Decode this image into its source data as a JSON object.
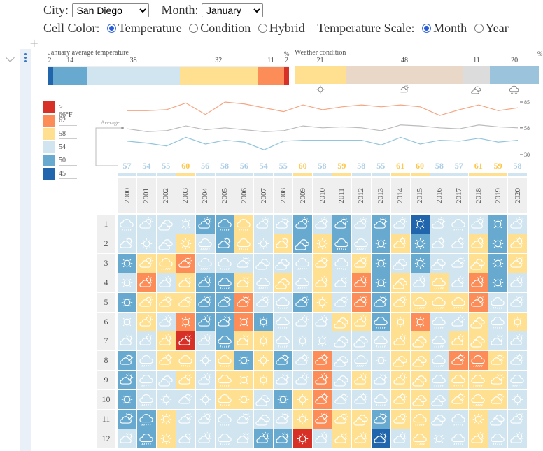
{
  "controls": {
    "city_label": "City:",
    "city_value": "San Diego",
    "month_label": "Month:",
    "month_value": "January",
    "cell_color_label": "Cell Color:",
    "cell_color_options": [
      {
        "label": "Temperature",
        "checked": true
      },
      {
        "label": "Condition",
        "checked": false
      },
      {
        "label": "Hybrid",
        "checked": false
      }
    ],
    "temp_scale_label": "Temperature Scale:",
    "temp_scale_options": [
      {
        "label": "Month",
        "checked": true
      },
      {
        "label": "Year",
        "checked": false
      }
    ]
  },
  "gutter": {
    "add": "+"
  },
  "temperature_summary": {
    "title": "January average temperature",
    "unit": "%",
    "segments": [
      {
        "bin": "45",
        "percent": 2,
        "color": "#2166ac"
      },
      {
        "bin": "50",
        "percent": 14,
        "color": "#67a9cf"
      },
      {
        "bin": "54",
        "percent": 38,
        "color": "#d1e5f0"
      },
      {
        "bin": "58",
        "percent": 32,
        "color": "#fee090"
      },
      {
        "bin": "62",
        "percent": 11,
        "color": "#fc8d59"
      },
      {
        "bin": "66",
        "percent": 2,
        "color": "#d73027"
      }
    ]
  },
  "weather_summary": {
    "title": "Weather condition",
    "unit": "%",
    "segments": [
      {
        "condition": "sun",
        "percent": 21,
        "color": "#fee090"
      },
      {
        "condition": "partly",
        "percent": 48,
        "color": "#e9d8c8"
      },
      {
        "condition": "cloudy",
        "percent": 11,
        "color": "#dcdcdc"
      },
      {
        "condition": "rain",
        "percent": 20,
        "color": "#9cc3dc"
      }
    ]
  },
  "legend": [
    {
      "label": "> 66°F",
      "color": "#d73027"
    },
    {
      "label": "62",
      "color": "#fc8d59"
    },
    {
      "label": "58",
      "color": "#fee090"
    },
    {
      "label": "54",
      "color": "#d1e5f0"
    },
    {
      "label": "50",
      "color": "#67a9cf"
    },
    {
      "label": "45",
      "color": "#2166ac"
    }
  ],
  "bin_colors": {
    "45": "#2166ac",
    "50": "#67a9cf",
    "54": "#d1e5f0",
    "58": "#fee090",
    "62": "#fc8d59",
    "66": "#d73027"
  },
  "chart_data": {
    "type": "line",
    "x": [
      2000,
      2001,
      2002,
      2003,
      2004,
      2005,
      2006,
      2007,
      2008,
      2009,
      2010,
      2011,
      2012,
      2013,
      2014,
      2015,
      2016,
      2017,
      2018,
      2019,
      2020
    ],
    "annotation": "Average",
    "yticks": [
      85,
      58,
      30
    ],
    "ylim": [
      30,
      85
    ],
    "series": [
      {
        "key": "max",
        "color": "#f4a582",
        "values": [
          76,
          76,
          77,
          84,
          72,
          85,
          83,
          79,
          75,
          82,
          77,
          80,
          82,
          80,
          82,
          80,
          71,
          77,
          82,
          76,
          79
        ]
      },
      {
        "key": "avg",
        "color": "#bbbbbb",
        "values": [
          57,
          54,
          55,
          60,
          56,
          58,
          56,
          54,
          55,
          60,
          58,
          59,
          58,
          55,
          61,
          60,
          58,
          57,
          61,
          59,
          58
        ]
      },
      {
        "key": "min",
        "color": "#92c5de",
        "values": [
          44,
          42,
          39,
          48,
          41,
          45,
          43,
          35,
          44,
          45,
          45,
          45,
          45,
          40,
          48,
          41,
          45,
          44,
          47,
          43,
          45
        ]
      }
    ]
  },
  "year_averages": [
    57,
    54,
    55,
    60,
    56,
    58,
    56,
    54,
    55,
    60,
    58,
    59,
    58,
    55,
    61,
    60,
    58,
    57,
    61,
    59,
    58
  ],
  "year_average_colors": {
    "high": "#fdc74a",
    "normal": "#a9cde6"
  },
  "years": [
    "2000",
    "2001",
    "2002",
    "2003",
    "2004",
    "2005",
    "2006",
    "2007",
    "2008",
    "2009",
    "2010",
    "2011",
    "2012",
    "2013",
    "2014",
    "2015",
    "2016",
    "2017",
    "2018",
    "2019",
    "2020"
  ],
  "grid": [
    {
      "day": "1",
      "temps": [
        54,
        54,
        54,
        54,
        50,
        50,
        58,
        54,
        54,
        50,
        54,
        50,
        54,
        50,
        54,
        45,
        54,
        54,
        54,
        50,
        54
      ],
      "conditions": [
        "rain",
        "partly",
        "cloudy",
        "sun",
        "partly",
        "rain",
        "rain",
        "partly",
        "partly",
        "partly",
        "partly",
        "partly",
        "partly",
        "partly",
        "partly",
        "sun",
        "partly",
        "rain",
        "partly",
        "sun",
        "partly"
      ]
    },
    {
      "day": "2",
      "temps": [
        54,
        54,
        54,
        58,
        54,
        50,
        58,
        54,
        58,
        50,
        58,
        50,
        54,
        50,
        58,
        50,
        54,
        54,
        58,
        50,
        58
      ],
      "conditions": [
        "partly",
        "sun",
        "cloudy",
        "sun",
        "rain",
        "partly",
        "rain",
        "sun",
        "partly",
        "cloudy",
        "sun",
        "rain",
        "rain",
        "sun",
        "partly",
        "sun",
        "partly",
        "partly",
        "partly",
        "sun",
        "partly"
      ]
    },
    {
      "day": "3",
      "temps": [
        50,
        58,
        58,
        62,
        54,
        54,
        54,
        54,
        54,
        54,
        58,
        54,
        58,
        50,
        54,
        50,
        54,
        54,
        58,
        50,
        58
      ],
      "conditions": [
        "sun",
        "partly",
        "rain",
        "partly",
        "rain",
        "rain",
        "partly",
        "cloudy",
        "cloudy",
        "rain",
        "partly",
        "rain",
        "partly",
        "sun",
        "cloudy",
        "sun",
        "cloudy",
        "partly",
        "cloudy",
        "sun",
        "partly"
      ]
    },
    {
      "day": "4",
      "temps": [
        54,
        62,
        54,
        58,
        50,
        50,
        58,
        54,
        58,
        54,
        58,
        54,
        62,
        50,
        58,
        54,
        58,
        54,
        62,
        50,
        54
      ],
      "conditions": [
        "sun",
        "partly",
        "partly",
        "partly",
        "partly",
        "rain",
        "partly",
        "rain",
        "cloudy",
        "rain",
        "partly",
        "partly",
        "partly",
        "sun",
        "cloudy",
        "partly",
        "rain",
        "partly",
        "partly",
        "sun",
        "partly"
      ]
    },
    {
      "day": "5",
      "temps": [
        50,
        58,
        58,
        58,
        50,
        50,
        62,
        54,
        54,
        50,
        58,
        54,
        62,
        50,
        58,
        58,
        58,
        58,
        62,
        54,
        54
      ],
      "conditions": [
        "sun",
        "partly",
        "partly",
        "partly",
        "partly",
        "partly",
        "partly",
        "partly",
        "rain",
        "partly",
        "sun",
        "partly",
        "partly",
        "partly",
        "partly",
        "rain",
        "rain",
        "rain",
        "partly",
        "rain",
        "partly"
      ]
    },
    {
      "day": "6",
      "temps": [
        54,
        58,
        54,
        62,
        50,
        50,
        62,
        50,
        54,
        54,
        54,
        58,
        58,
        50,
        58,
        62,
        54,
        54,
        58,
        54,
        58
      ],
      "conditions": [
        "sun",
        "partly",
        "partly",
        "sun",
        "partly",
        "partly",
        "sun",
        "sun",
        "rain",
        "partly",
        "partly",
        "cloudy",
        "partly",
        "rain",
        "sun",
        "sun",
        "rain",
        "partly",
        "cloudy",
        "rain",
        "sun"
      ]
    },
    {
      "day": "7",
      "temps": [
        54,
        54,
        58,
        66,
        54,
        50,
        58,
        58,
        54,
        54,
        54,
        54,
        54,
        54,
        58,
        58,
        54,
        58,
        58,
        54,
        54
      ],
      "conditions": [
        "partly",
        "partly",
        "partly",
        "partly",
        "partly",
        "rain",
        "partly",
        "sun",
        "rain",
        "sun",
        "sun",
        "cloudy",
        "cloudy",
        "rain",
        "partly",
        "cloudy",
        "rain",
        "partly",
        "cloudy",
        "partly",
        "partly"
      ]
    },
    {
      "day": "8",
      "temps": [
        50,
        54,
        58,
        58,
        54,
        58,
        50,
        58,
        50,
        54,
        62,
        54,
        54,
        54,
        58,
        58,
        54,
        62,
        62,
        58,
        54
      ],
      "conditions": [
        "partly",
        "rain",
        "partly",
        "rain",
        "sun",
        "rain",
        "sun",
        "sun",
        "partly",
        "partly",
        "partly",
        "cloudy",
        "rain",
        "sun",
        "cloudy",
        "cloudy",
        "rain",
        "partly",
        "rain",
        "partly",
        "partly"
      ]
    },
    {
      "day": "9",
      "temps": [
        50,
        54,
        54,
        58,
        54,
        58,
        58,
        58,
        54,
        54,
        62,
        54,
        58,
        54,
        58,
        58,
        54,
        58,
        58,
        58,
        54
      ],
      "conditions": [
        "partly",
        "rain",
        "cloudy",
        "partly",
        "partly",
        "rain",
        "sun",
        "sun",
        "partly",
        "partly",
        "partly",
        "cloudy",
        "partly",
        "partly",
        "partly",
        "cloudy",
        "rain",
        "rain",
        "rain",
        "partly",
        "rain"
      ]
    },
    {
      "day": "10",
      "temps": [
        50,
        54,
        54,
        54,
        54,
        58,
        58,
        54,
        50,
        58,
        62,
        54,
        54,
        54,
        58,
        58,
        54,
        58,
        58,
        58,
        54
      ],
      "conditions": [
        "sun",
        "rain",
        "sun",
        "partly",
        "sun",
        "rain",
        "sun",
        "cloudy",
        "sun",
        "sun",
        "partly",
        "partly",
        "partly",
        "rain",
        "partly",
        "cloudy",
        "cloudy",
        "partly",
        "rain",
        "partly",
        "sun"
      ]
    },
    {
      "day": "11",
      "temps": [
        50,
        50,
        58,
        54,
        54,
        54,
        54,
        54,
        54,
        58,
        62,
        58,
        58,
        50,
        58,
        58,
        54,
        54,
        58,
        54,
        54
      ],
      "conditions": [
        "partly",
        "rain",
        "sun",
        "partly",
        "partly",
        "rain",
        "partly",
        "cloudy",
        "partly",
        "sun",
        "partly",
        "partly",
        "cloudy",
        "partly",
        "partly",
        "rain",
        "cloudy",
        "rain",
        "sun",
        "cloudy",
        "partly"
      ]
    },
    {
      "day": "12",
      "temps": [
        54,
        50,
        58,
        54,
        54,
        54,
        54,
        50,
        50,
        66,
        54,
        58,
        58,
        45,
        54,
        58,
        54,
        54,
        58,
        54,
        54
      ],
      "conditions": [
        "partly",
        "rain",
        "sun",
        "partly",
        "partly",
        "rain",
        "partly",
        "partly",
        "partly",
        "sun",
        "partly",
        "partly",
        "partly",
        "partly",
        "partly",
        "rain",
        "sun",
        "rain",
        "partly",
        "rain",
        "partly"
      ]
    }
  ]
}
